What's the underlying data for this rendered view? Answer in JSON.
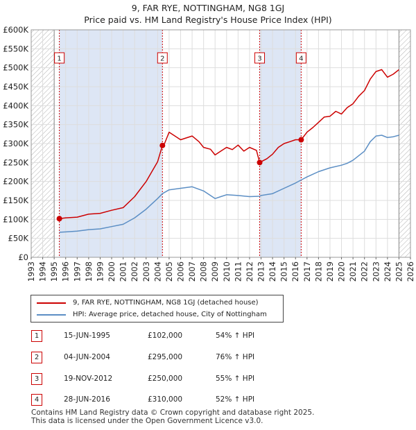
{
  "header": {
    "title_line1": "9, FAR RYE, NOTTINGHAM, NG8 1GJ",
    "title_line2": "Price paid vs. HM Land Registry's House Price Index (HPI)"
  },
  "legend": {
    "property_label": "9, FAR RYE, NOTTINGHAM, NG8 1GJ (detached house)",
    "hpi_label": "HPI: Average price, detached house, City of Nottingham"
  },
  "transactions": [
    {
      "num": "1",
      "date": "15-JUN-1995",
      "price": "£102,000",
      "hpi": "54% ↑ HPI"
    },
    {
      "num": "2",
      "date": "04-JUN-2004",
      "price": "£295,000",
      "hpi": "76% ↑ HPI"
    },
    {
      "num": "3",
      "date": "19-NOV-2012",
      "price": "£250,000",
      "hpi": "55% ↑ HPI"
    },
    {
      "num": "4",
      "date": "28-JUN-2016",
      "price": "£310,000",
      "hpi": "52% ↑ HPI"
    }
  ],
  "footer": {
    "line1": "Contains HM Land Registry data © Crown copyright and database right 2025.",
    "line2": "This data is licensed under the Open Government Licence v3.0."
  },
  "colors": {
    "property": "#cc0000",
    "hpi": "#5b8ec4",
    "shade": "#dde6f5",
    "hatch": "#aaaaaa",
    "grid": "#dddddd"
  },
  "chart_data": {
    "type": "line",
    "title": "9, FAR RYE, NOTTINGHAM, NG8 1GJ",
    "subtitle": "Price paid vs. HM Land Registry's House Price Index (HPI)",
    "xlabel": "",
    "ylabel": "",
    "xlim": [
      1993,
      2026
    ],
    "ylim": [
      0,
      600000
    ],
    "x_ticks": [
      1993,
      1994,
      1995,
      1996,
      1997,
      1998,
      1999,
      2000,
      2001,
      2002,
      2003,
      2004,
      2005,
      2006,
      2007,
      2008,
      2009,
      2010,
      2011,
      2012,
      2013,
      2014,
      2015,
      2016,
      2017,
      2018,
      2019,
      2020,
      2021,
      2022,
      2023,
      2024,
      2025,
      2026
    ],
    "y_ticks": [
      0,
      50000,
      100000,
      150000,
      200000,
      250000,
      300000,
      350000,
      400000,
      450000,
      500000,
      550000,
      600000
    ],
    "y_tick_labels": [
      "£0",
      "£50K",
      "£100K",
      "£150K",
      "£200K",
      "£250K",
      "£300K",
      "£350K",
      "£400K",
      "£450K",
      "£500K",
      "£550K",
      "£600K"
    ],
    "grid": true,
    "hatched_before": 1995.0,
    "hatched_after": 2025.0,
    "shaded_spans": [
      [
        1995.45,
        2004.42
      ],
      [
        2012.88,
        2016.49
      ]
    ],
    "series": [
      {
        "name": "9, FAR RYE, NOTTINGHAM, NG8 1GJ (detached house)",
        "x": [
          1995.45,
          1996.0,
          1997.0,
          1998.0,
          1999.0,
          2000.0,
          2001.0,
          2002.0,
          2003.0,
          2004.0,
          2004.42,
          2004.6,
          2005.0,
          2006.0,
          2007.0,
          2007.6,
          2008.0,
          2008.6,
          2009.0,
          2009.5,
          2010.0,
          2010.5,
          2011.0,
          2011.5,
          2012.0,
          2012.6,
          2012.88,
          2013.0,
          2013.5,
          2014.0,
          2014.5,
          2015.0,
          2015.5,
          2016.0,
          2016.49,
          2017.0,
          2017.5,
          2018.0,
          2018.5,
          2019.0,
          2019.5,
          2020.0,
          2020.5,
          2021.0,
          2021.5,
          2022.0,
          2022.5,
          2023.0,
          2023.5,
          2024.0,
          2024.5,
          2025.0
        ],
        "y": [
          102000,
          104000,
          106000,
          114000,
          116000,
          124000,
          131000,
          160000,
          200000,
          252000,
          295000,
          300000,
          330000,
          310000,
          320000,
          305000,
          290000,
          285000,
          270000,
          280000,
          290000,
          284000,
          296000,
          280000,
          290000,
          282000,
          250000,
          252000,
          260000,
          272000,
          290000,
          300000,
          305000,
          310000,
          310000,
          330000,
          342000,
          356000,
          370000,
          372000,
          385000,
          378000,
          395000,
          405000,
          425000,
          440000,
          470000,
          490000,
          495000,
          475000,
          483000,
          495000
        ],
        "color": "#cc0000"
      },
      {
        "name": "HPI: Average price, detached house, City of Nottingham",
        "x": [
          1995.45,
          1996.0,
          1997.0,
          1998.0,
          1999.0,
          2000.0,
          2001.0,
          2002.0,
          2003.0,
          2004.0,
          2004.42,
          2005.0,
          2006.0,
          2007.0,
          2008.0,
          2009.0,
          2009.5,
          2010.0,
          2011.0,
          2012.0,
          2012.88,
          2013.0,
          2014.0,
          2015.0,
          2016.0,
          2016.49,
          2017.0,
          2018.0,
          2019.0,
          2020.0,
          2020.5,
          2021.0,
          2022.0,
          2022.5,
          2023.0,
          2023.5,
          2024.0,
          2024.5,
          2025.0
        ],
        "y": [
          66000,
          67000,
          69000,
          73000,
          75000,
          81000,
          87000,
          104000,
          127000,
          155000,
          168000,
          178000,
          182000,
          186000,
          175000,
          155000,
          160000,
          165000,
          163000,
          160000,
          161000,
          163000,
          168000,
          182000,
          196000,
          204000,
          212000,
          226000,
          236000,
          243000,
          248000,
          256000,
          280000,
          305000,
          320000,
          322000,
          316000,
          318000,
          322000
        ],
        "color": "#5b8ec4"
      }
    ],
    "sale_points": [
      {
        "num": "1",
        "x": 1995.45,
        "y": 102000
      },
      {
        "num": "2",
        "x": 2004.42,
        "y": 295000
      },
      {
        "num": "3",
        "x": 2012.88,
        "y": 250000
      },
      {
        "num": "4",
        "x": 2016.49,
        "y": 310000
      }
    ]
  }
}
